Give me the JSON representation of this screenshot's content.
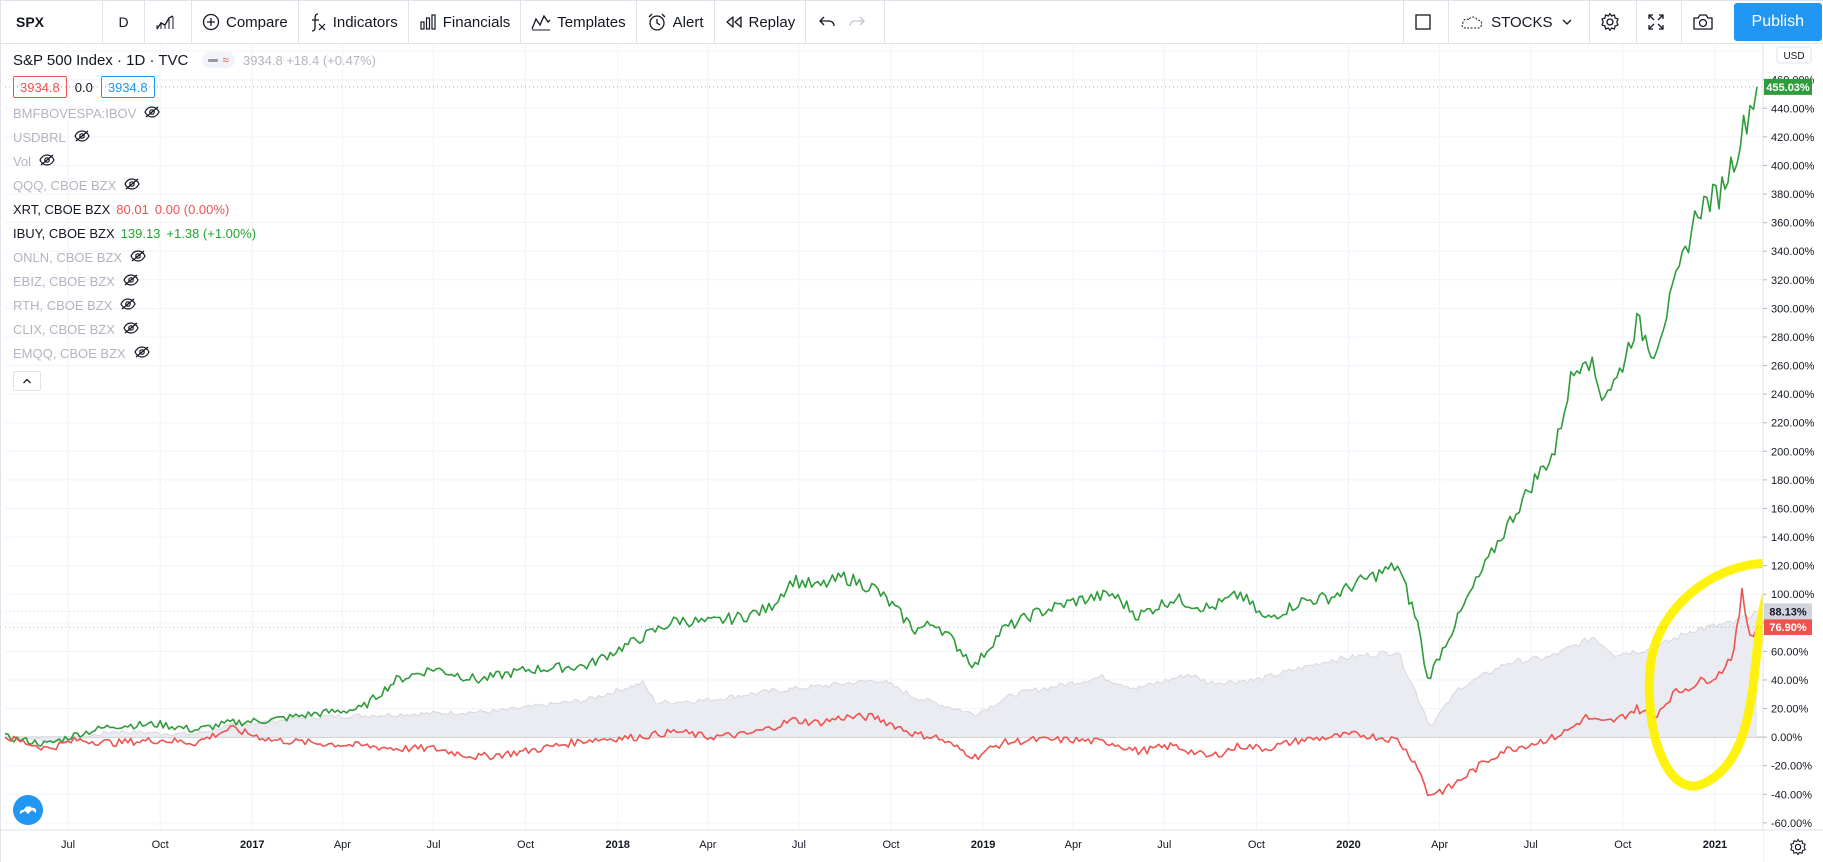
{
  "toolbar": {
    "symbol": "SPX",
    "interval": "D",
    "compare": "Compare",
    "indicators": "Indicators",
    "financials": "Financials",
    "templates": "Templates",
    "alert": "Alert",
    "replay": "Replay",
    "market": "STOCKS",
    "publish": "Publish"
  },
  "legend": {
    "title": "S&P 500 Index · 1D · TVC",
    "ohlc": "3934.8 +18.4 (+0.47%)",
    "bid": "3934.8",
    "spread": "0.0",
    "ask": "3934.8",
    "studies": [
      {
        "label": "BMFBOVESPA:IBOV",
        "value": "",
        "change": "",
        "hidden": true
      },
      {
        "label": "USDBRL",
        "value": "",
        "change": "",
        "hidden": true
      },
      {
        "label": "Vol",
        "value": "",
        "change": "",
        "hidden": true
      },
      {
        "label": "QQQ, CBOE BZX",
        "value": "",
        "change": "",
        "hidden": true
      },
      {
        "label": "XRT, CBOE BZX",
        "value": "80.01",
        "change": "0.00 (0.00%)",
        "hidden": false,
        "color": "red"
      },
      {
        "label": "IBUY, CBOE BZX",
        "value": "139.13",
        "change": "+1.38 (+1.00%)",
        "hidden": false,
        "color": "green"
      },
      {
        "label": "ONLN, CBOE BZX",
        "value": "",
        "change": "",
        "hidden": true
      },
      {
        "label": "EBIZ, CBOE BZX",
        "value": "",
        "change": "",
        "hidden": true
      },
      {
        "label": "RTH, CBOE BZX",
        "value": "",
        "change": "",
        "hidden": true
      },
      {
        "label": "CLIX, CBOE BZX",
        "value": "",
        "change": "",
        "hidden": true
      },
      {
        "label": "EMQQ, CBOE BZX",
        "value": "",
        "change": "",
        "hidden": true
      }
    ]
  },
  "colors": {
    "ibuy": "#2e9c3a",
    "xrt": "#ef5350",
    "spx_area": "#e9eaef",
    "highlight": "#fff200",
    "accent": "#2196f3"
  },
  "chart_data": {
    "type": "line",
    "currency": "USD",
    "yaxis_unit": "%",
    "ylim": [
      -65,
      485
    ],
    "yticks": [
      -60,
      -40,
      -20,
      0,
      20,
      40,
      60,
      80,
      100,
      120,
      140,
      160,
      180,
      200,
      220,
      240,
      260,
      280,
      300,
      320,
      340,
      360,
      380,
      400,
      420,
      440,
      460,
      480
    ],
    "xlim": [
      "2016-04-29",
      "2021-02-12"
    ],
    "xticks": [
      {
        "label": "Jul",
        "date": "2016-07-01"
      },
      {
        "label": "Oct",
        "date": "2016-10-01"
      },
      {
        "label": "2017",
        "date": "2017-01-01"
      },
      {
        "label": "Apr",
        "date": "2017-04-01"
      },
      {
        "label": "Jul",
        "date": "2017-07-01"
      },
      {
        "label": "Oct",
        "date": "2017-10-01"
      },
      {
        "label": "2018",
        "date": "2018-01-01"
      },
      {
        "label": "Apr",
        "date": "2018-04-01"
      },
      {
        "label": "Jul",
        "date": "2018-07-01"
      },
      {
        "label": "Oct",
        "date": "2018-10-01"
      },
      {
        "label": "2019",
        "date": "2019-01-01"
      },
      {
        "label": "Apr",
        "date": "2019-04-01"
      },
      {
        "label": "Jul",
        "date": "2019-07-01"
      },
      {
        "label": "Oct",
        "date": "2019-10-01"
      },
      {
        "label": "2020",
        "date": "2020-01-01"
      },
      {
        "label": "Apr",
        "date": "2020-04-01"
      },
      {
        "label": "Jul",
        "date": "2020-07-01"
      },
      {
        "label": "Oct",
        "date": "2020-10-01"
      },
      {
        "label": "2021",
        "date": "2021-01-01"
      }
    ],
    "series": [
      {
        "name": "IBUY, CBOE BZX",
        "color": "#2e9c3a",
        "last_label": "455.03%",
        "points": [
          [
            "2016-04-29",
            0
          ],
          [
            "2016-06-10",
            -5
          ],
          [
            "2016-07-10",
            2
          ],
          [
            "2016-08-15",
            8
          ],
          [
            "2016-10-01",
            9
          ],
          [
            "2016-11-05",
            5
          ],
          [
            "2016-12-10",
            10
          ],
          [
            "2017-01-20",
            12
          ],
          [
            "2017-03-01",
            16
          ],
          [
            "2017-04-20",
            20
          ],
          [
            "2017-05-25",
            40
          ],
          [
            "2017-07-01",
            48
          ],
          [
            "2017-08-15",
            40
          ],
          [
            "2017-10-01",
            47
          ],
          [
            "2017-12-01",
            50
          ],
          [
            "2018-01-20",
            68
          ],
          [
            "2018-03-01",
            82
          ],
          [
            "2018-04-01",
            80
          ],
          [
            "2018-05-10",
            85
          ],
          [
            "2018-06-01",
            90
          ],
          [
            "2018-06-25",
            110
          ],
          [
            "2018-07-20",
            105
          ],
          [
            "2018-08-15",
            112
          ],
          [
            "2018-09-15",
            104
          ],
          [
            "2018-10-05",
            90
          ],
          [
            "2018-10-25",
            75
          ],
          [
            "2018-11-15",
            80
          ],
          [
            "2018-12-24",
            50
          ],
          [
            "2019-01-20",
            75
          ],
          [
            "2019-02-20",
            86
          ],
          [
            "2019-04-01",
            95
          ],
          [
            "2019-05-10",
            100
          ],
          [
            "2019-06-05",
            85
          ],
          [
            "2019-07-10",
            97
          ],
          [
            "2019-08-15",
            90
          ],
          [
            "2019-09-15",
            100
          ],
          [
            "2019-10-10",
            82
          ],
          [
            "2019-11-15",
            95
          ],
          [
            "2019-12-15",
            98
          ],
          [
            "2020-01-10",
            108
          ],
          [
            "2020-02-19",
            120
          ],
          [
            "2020-03-10",
            80
          ],
          [
            "2020-03-20",
            40
          ],
          [
            "2020-04-10",
            70
          ],
          [
            "2020-05-01",
            100
          ],
          [
            "2020-06-01",
            140
          ],
          [
            "2020-07-05",
            180
          ],
          [
            "2020-07-25",
            200
          ],
          [
            "2020-08-10",
            250
          ],
          [
            "2020-08-25",
            270
          ],
          [
            "2020-09-10",
            240
          ],
          [
            "2020-09-25",
            250
          ],
          [
            "2020-10-15",
            290
          ],
          [
            "2020-11-01",
            270
          ],
          [
            "2020-11-20",
            310
          ],
          [
            "2020-12-15",
            370
          ],
          [
            "2021-01-05",
            380
          ],
          [
            "2021-01-20",
            405
          ],
          [
            "2021-02-05",
            440
          ],
          [
            "2021-02-12",
            455
          ]
        ]
      },
      {
        "name": "XRT, CBOE BZX",
        "color": "#ef5350",
        "last_label": "76.90%",
        "points": [
          [
            "2016-04-29",
            0
          ],
          [
            "2016-06-10",
            -8
          ],
          [
            "2016-07-10",
            -2
          ],
          [
            "2016-08-15",
            -4
          ],
          [
            "2016-10-01",
            -2
          ],
          [
            "2016-11-05",
            -4
          ],
          [
            "2016-12-10",
            6
          ],
          [
            "2017-01-20",
            -2
          ],
          [
            "2017-03-01",
            -4
          ],
          [
            "2017-04-20",
            -6
          ],
          [
            "2017-05-25",
            -8
          ],
          [
            "2017-07-01",
            -8
          ],
          [
            "2017-08-15",
            -14
          ],
          [
            "2017-10-01",
            -10
          ],
          [
            "2017-12-01",
            -2
          ],
          [
            "2018-01-20",
            0
          ],
          [
            "2018-03-01",
            4
          ],
          [
            "2018-04-01",
            0
          ],
          [
            "2018-05-10",
            2
          ],
          [
            "2018-06-01",
            6
          ],
          [
            "2018-06-25",
            12
          ],
          [
            "2018-07-20",
            10
          ],
          [
            "2018-08-15",
            14
          ],
          [
            "2018-09-15",
            14
          ],
          [
            "2018-10-05",
            8
          ],
          [
            "2018-10-25",
            2
          ],
          [
            "2018-11-15",
            0
          ],
          [
            "2018-12-24",
            -14
          ],
          [
            "2019-01-20",
            -4
          ],
          [
            "2019-02-20",
            -2
          ],
          [
            "2019-04-01",
            -2
          ],
          [
            "2019-05-10",
            -4
          ],
          [
            "2019-06-05",
            -10
          ],
          [
            "2019-07-10",
            -6
          ],
          [
            "2019-08-15",
            -14
          ],
          [
            "2019-09-15",
            -6
          ],
          [
            "2019-10-10",
            -8
          ],
          [
            "2019-11-15",
            -2
          ],
          [
            "2019-12-15",
            0
          ],
          [
            "2020-01-10",
            2
          ],
          [
            "2020-02-19",
            -2
          ],
          [
            "2020-03-10",
            -20
          ],
          [
            "2020-03-20",
            -40
          ],
          [
            "2020-04-10",
            -36
          ],
          [
            "2020-05-01",
            -25
          ],
          [
            "2020-06-01",
            -10
          ],
          [
            "2020-07-05",
            -4
          ],
          [
            "2020-07-25",
            0
          ],
          [
            "2020-08-10",
            6
          ],
          [
            "2020-08-25",
            14
          ],
          [
            "2020-09-10",
            10
          ],
          [
            "2020-09-25",
            12
          ],
          [
            "2020-10-15",
            20
          ],
          [
            "2020-11-01",
            14
          ],
          [
            "2020-11-20",
            30
          ],
          [
            "2020-12-15",
            38
          ],
          [
            "2021-01-05",
            44
          ],
          [
            "2021-01-20",
            60
          ],
          [
            "2021-01-28",
            100
          ],
          [
            "2021-02-05",
            72
          ],
          [
            "2021-02-12",
            77
          ]
        ]
      },
      {
        "name": "S&P 500 Index",
        "color": "#d6d8de",
        "last_label": "88.13%",
        "area": true,
        "points": [
          [
            "2016-04-29",
            0
          ],
          [
            "2016-06-27",
            -3
          ],
          [
            "2016-08-15",
            4
          ],
          [
            "2016-11-03",
            2
          ],
          [
            "2016-12-10",
            8
          ],
          [
            "2017-03-01",
            14
          ],
          [
            "2017-06-01",
            16
          ],
          [
            "2017-09-01",
            18
          ],
          [
            "2017-12-01",
            26
          ],
          [
            "2018-01-26",
            38
          ],
          [
            "2018-02-08",
            24
          ],
          [
            "2018-04-01",
            26
          ],
          [
            "2018-06-01",
            32
          ],
          [
            "2018-09-20",
            40
          ],
          [
            "2018-10-25",
            28
          ],
          [
            "2018-12-24",
            16
          ],
          [
            "2019-02-01",
            30
          ],
          [
            "2019-04-30",
            42
          ],
          [
            "2019-06-03",
            34
          ],
          [
            "2019-07-26",
            44
          ],
          [
            "2019-08-15",
            38
          ],
          [
            "2019-10-01",
            40
          ],
          [
            "2019-12-15",
            54
          ],
          [
            "2020-02-19",
            60
          ],
          [
            "2020-03-23",
            8
          ],
          [
            "2020-04-20",
            34
          ],
          [
            "2020-06-08",
            52
          ],
          [
            "2020-07-20",
            56
          ],
          [
            "2020-09-02",
            70
          ],
          [
            "2020-09-23",
            58
          ],
          [
            "2020-11-01",
            62
          ],
          [
            "2020-12-10",
            75
          ],
          [
            "2021-01-20",
            80
          ],
          [
            "2021-02-12",
            88
          ]
        ]
      }
    ]
  }
}
